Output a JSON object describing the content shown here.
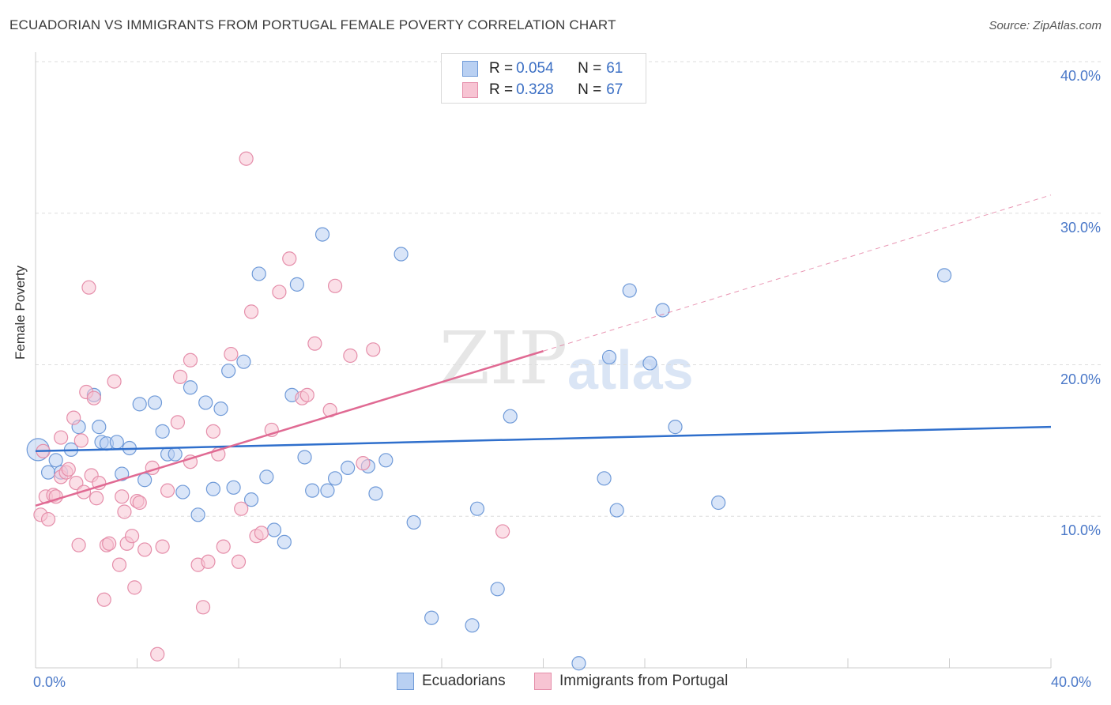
{
  "header": {
    "title": "ECUADORIAN VS IMMIGRANTS FROM PORTUGAL FEMALE POVERTY CORRELATION CHART",
    "source": "Source: ZipAtlas.com"
  },
  "watermark": {
    "zip": "ZIP",
    "atlas": "atlas"
  },
  "legend": {
    "rows": [
      {
        "r_label": "R = ",
        "r_value": "0.054",
        "n_label": "N = ",
        "n_value": "61"
      },
      {
        "r_label": "R = ",
        "r_value": "0.328",
        "n_label": "N = ",
        "n_value": "67"
      }
    ]
  },
  "colors": {
    "blue_fill": "#b9d0f2",
    "blue_stroke": "#6f9ad8",
    "blue_line": "#2f6fcc",
    "pink_fill": "#f7c4d3",
    "pink_stroke": "#e58eaa",
    "pink_line": "#e06a93",
    "grid": "#dddddd",
    "tick_text": "#4a78c8"
  },
  "chart_data": {
    "type": "scatter",
    "title": "ECUADORIAN VS IMMIGRANTS FROM PORTUGAL FEMALE POVERTY CORRELATION CHART",
    "xlabel": "",
    "ylabel": "Female Poverty",
    "xlim": [
      0,
      40
    ],
    "ylim": [
      0,
      40
    ],
    "y_ticks": [
      "10.0%",
      "20.0%",
      "30.0%",
      "40.0%"
    ],
    "y_tick_values": [
      10,
      20,
      30,
      40
    ],
    "x_ticks": [
      "0.0%",
      "40.0%"
    ],
    "x_tick_values": [
      0,
      40
    ],
    "grid": true,
    "legend_position": "top-center",
    "series": [
      {
        "name": "Ecuadorians",
        "trend": {
          "x": [
            0,
            40
          ],
          "y": [
            14.3,
            15.9
          ]
        },
        "points": [
          [
            0.1,
            14.4
          ],
          [
            0.5,
            12.9
          ],
          [
            0.8,
            13.7
          ],
          [
            1.0,
            12.9
          ],
          [
            1.4,
            14.4
          ],
          [
            1.7,
            15.9
          ],
          [
            2.3,
            18.0
          ],
          [
            2.5,
            15.9
          ],
          [
            2.6,
            14.9
          ],
          [
            2.8,
            14.8
          ],
          [
            3.2,
            14.9
          ],
          [
            3.4,
            12.8
          ],
          [
            3.7,
            14.5
          ],
          [
            4.1,
            17.4
          ],
          [
            4.3,
            12.4
          ],
          [
            4.7,
            17.5
          ],
          [
            5.0,
            15.6
          ],
          [
            5.2,
            14.1
          ],
          [
            5.5,
            14.1
          ],
          [
            5.8,
            11.6
          ],
          [
            6.1,
            18.5
          ],
          [
            6.4,
            10.1
          ],
          [
            6.7,
            17.5
          ],
          [
            7.0,
            11.8
          ],
          [
            7.3,
            17.1
          ],
          [
            7.6,
            19.6
          ],
          [
            7.8,
            11.9
          ],
          [
            8.2,
            20.2
          ],
          [
            8.5,
            11.1
          ],
          [
            8.8,
            26.0
          ],
          [
            9.1,
            12.6
          ],
          [
            9.4,
            9.1
          ],
          [
            9.8,
            8.3
          ],
          [
            10.1,
            18.0
          ],
          [
            10.3,
            25.3
          ],
          [
            10.6,
            13.9
          ],
          [
            10.9,
            11.7
          ],
          [
            11.3,
            28.6
          ],
          [
            11.5,
            11.7
          ],
          [
            11.8,
            12.5
          ],
          [
            12.3,
            13.2
          ],
          [
            13.1,
            13.3
          ],
          [
            13.4,
            11.5
          ],
          [
            13.8,
            13.7
          ],
          [
            14.4,
            27.3
          ],
          [
            14.9,
            9.6
          ],
          [
            15.6,
            3.3
          ],
          [
            17.2,
            2.8
          ],
          [
            17.4,
            10.5
          ],
          [
            18.2,
            5.2
          ],
          [
            18.7,
            16.6
          ],
          [
            21.4,
            0.3
          ],
          [
            22.4,
            12.5
          ],
          [
            22.6,
            20.5
          ],
          [
            22.9,
            10.4
          ],
          [
            23.4,
            24.9
          ],
          [
            24.2,
            20.1
          ],
          [
            24.7,
            23.6
          ],
          [
            25.2,
            15.9
          ],
          [
            26.9,
            10.9
          ],
          [
            35.8,
            25.9
          ]
        ]
      },
      {
        "name": "Immigrants from Portugal",
        "trend": {
          "x": [
            0,
            20
          ],
          "y": [
            10.7,
            20.9
          ]
        },
        "trend_dashed": {
          "x": [
            20,
            40
          ],
          "y": [
            20.9,
            31.2
          ]
        },
        "points": [
          [
            0.2,
            10.1
          ],
          [
            0.4,
            11.3
          ],
          [
            0.5,
            9.8
          ],
          [
            0.7,
            11.4
          ],
          [
            0.8,
            11.3
          ],
          [
            1.0,
            12.6
          ],
          [
            1.0,
            15.2
          ],
          [
            1.2,
            12.9
          ],
          [
            1.3,
            13.1
          ],
          [
            1.5,
            16.5
          ],
          [
            1.6,
            12.2
          ],
          [
            1.7,
            8.1
          ],
          [
            1.8,
            15.0
          ],
          [
            1.9,
            11.6
          ],
          [
            2.0,
            18.2
          ],
          [
            2.1,
            25.1
          ],
          [
            2.2,
            12.7
          ],
          [
            2.3,
            17.8
          ],
          [
            2.4,
            11.2
          ],
          [
            2.5,
            12.2
          ],
          [
            2.7,
            4.5
          ],
          [
            2.8,
            8.1
          ],
          [
            2.9,
            8.2
          ],
          [
            3.1,
            18.9
          ],
          [
            3.3,
            6.8
          ],
          [
            3.4,
            11.3
          ],
          [
            3.5,
            10.3
          ],
          [
            3.6,
            8.2
          ],
          [
            3.8,
            8.7
          ],
          [
            3.9,
            5.3
          ],
          [
            4.0,
            11.0
          ],
          [
            4.1,
            10.9
          ],
          [
            4.3,
            7.8
          ],
          [
            4.6,
            13.2
          ],
          [
            4.8,
            0.9
          ],
          [
            5.0,
            8.0
          ],
          [
            5.2,
            11.7
          ],
          [
            5.6,
            16.2
          ],
          [
            5.7,
            19.2
          ],
          [
            6.1,
            20.3
          ],
          [
            6.1,
            13.6
          ],
          [
            6.4,
            6.8
          ],
          [
            6.6,
            4.0
          ],
          [
            6.8,
            7.0
          ],
          [
            7.0,
            15.6
          ],
          [
            7.2,
            14.1
          ],
          [
            7.4,
            8.0
          ],
          [
            7.7,
            20.7
          ],
          [
            8.0,
            7.0
          ],
          [
            8.1,
            10.5
          ],
          [
            8.5,
            23.5
          ],
          [
            8.7,
            8.7
          ],
          [
            8.9,
            8.9
          ],
          [
            9.3,
            15.7
          ],
          [
            9.6,
            24.8
          ],
          [
            10.0,
            27.0
          ],
          [
            10.5,
            17.8
          ],
          [
            10.7,
            18.0
          ],
          [
            11.0,
            21.4
          ],
          [
            11.6,
            17.0
          ],
          [
            11.8,
            25.2
          ],
          [
            12.4,
            20.6
          ],
          [
            12.9,
            13.5
          ],
          [
            13.3,
            21.0
          ],
          [
            18.4,
            9.0
          ],
          [
            8.3,
            33.6
          ],
          [
            0.3,
            14.3
          ]
        ]
      }
    ]
  },
  "bottom_legend": {
    "items": [
      "Ecuadorians",
      "Immigrants from Portugal"
    ]
  }
}
